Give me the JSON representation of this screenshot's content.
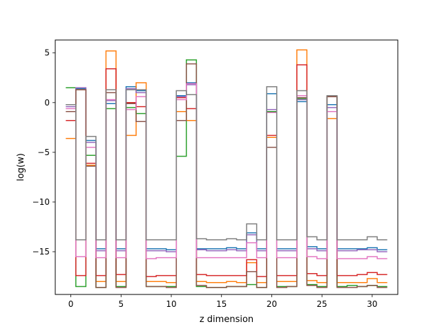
{
  "chart_data": {
    "type": "line",
    "style": "step",
    "title": "",
    "xlabel": "z dimension",
    "ylabel": "log(w)",
    "xlim": [
      -1.55,
      32.55
    ],
    "ylim": [
      -19.3,
      6.3
    ],
    "xticks": [
      0,
      5,
      10,
      15,
      20,
      25,
      30
    ],
    "yticks": [
      5,
      0,
      -5,
      -10,
      -15
    ],
    "ytick_labels": [
      "5",
      "0",
      "−5",
      "−10",
      "−15"
    ],
    "grid": false,
    "legend": "none",
    "x": [
      0,
      1,
      2,
      3,
      4,
      5,
      6,
      7,
      8,
      9,
      10,
      11,
      12,
      13,
      14,
      15,
      16,
      17,
      18,
      19,
      20,
      21,
      22,
      23,
      24,
      25,
      26,
      27,
      28,
      29,
      30,
      31
    ],
    "series": [
      {
        "color": "#1f77b4",
        "values": [
          -0.2,
          1.4,
          -3.8,
          -14.7,
          -0.1,
          -14.7,
          1.6,
          1.2,
          -14.7,
          -14.7,
          -14.8,
          0.7,
          2.0,
          -14.7,
          -14.7,
          -14.7,
          -14.6,
          -14.7,
          -13.1,
          -14.7,
          0.9,
          -14.7,
          -14.7,
          0.1,
          -14.5,
          -14.7,
          -0.2,
          -14.7,
          -14.7,
          -14.7,
          -14.6,
          -14.8
        ]
      },
      {
        "color": "#ff7f0e",
        "values": [
          -3.6,
          1.3,
          -6.3,
          -18.0,
          5.2,
          -18.0,
          -3.3,
          2.0,
          -18.0,
          -18.0,
          -18.1,
          -0.9,
          -1.8,
          -18.0,
          -18.1,
          -18.1,
          -18.0,
          -18.1,
          -16.1,
          -18.1,
          -3.5,
          -18.0,
          -18.0,
          5.3,
          -17.9,
          -18.1,
          -1.6,
          -18.1,
          -18.1,
          -18.1,
          -17.7,
          -18.1
        ]
      },
      {
        "color": "#2ca02c",
        "values": [
          1.5,
          -18.5,
          -5.3,
          -18.6,
          -0.6,
          -18.5,
          -0.5,
          -1.1,
          -18.5,
          -18.5,
          -18.5,
          -5.4,
          4.3,
          -18.5,
          -18.6,
          -18.6,
          -18.5,
          -18.5,
          -18.3,
          -18.6,
          -0.9,
          -18.5,
          -18.5,
          0.4,
          -18.3,
          -18.5,
          0.6,
          -18.5,
          -18.4,
          -18.5,
          -18.4,
          -18.5
        ]
      },
      {
        "color": "#d62728",
        "values": [
          -1.8,
          -17.4,
          -6.1,
          -17.4,
          3.4,
          -17.3,
          0.0,
          -0.4,
          -17.5,
          -17.4,
          -17.4,
          0.5,
          -0.6,
          -17.3,
          -17.4,
          -17.4,
          -17.4,
          -17.4,
          -15.8,
          -17.5,
          -3.3,
          -17.4,
          -17.4,
          3.8,
          -17.2,
          -17.4,
          0.6,
          -17.4,
          -17.4,
          -17.3,
          -17.1,
          -17.3
        ]
      },
      {
        "color": "#9467bd",
        "values": [
          -0.4,
          1.5,
          -4.0,
          -14.9,
          0.2,
          -14.9,
          1.4,
          1.0,
          -14.9,
          -14.9,
          -15.0,
          0.6,
          1.8,
          -14.8,
          -14.9,
          -14.9,
          -14.8,
          -14.9,
          -13.3,
          -14.9,
          -0.7,
          -14.9,
          -14.9,
          0.3,
          -14.7,
          -14.9,
          -0.5,
          -14.9,
          -14.9,
          -14.8,
          -14.8,
          -15.0
        ]
      },
      {
        "color": "#8c564b",
        "values": [
          -0.9,
          1.3,
          -6.4,
          -18.6,
          1.0,
          -18.6,
          -0.1,
          -1.9,
          -18.5,
          -18.5,
          -18.6,
          -1.8,
          3.9,
          -18.4,
          -18.6,
          -18.6,
          -18.5,
          -18.5,
          -17.0,
          -18.6,
          -4.5,
          -18.6,
          -18.5,
          0.5,
          -18.4,
          -18.6,
          0.6,
          -18.6,
          -18.6,
          -18.5,
          -18.4,
          -18.6
        ]
      },
      {
        "color": "#e377c2",
        "values": [
          -0.6,
          -15.5,
          -4.5,
          -15.6,
          0.3,
          -15.6,
          -0.7,
          0.6,
          -15.7,
          -15.6,
          -15.6,
          0.3,
          1.9,
          -15.6,
          -15.6,
          -15.6,
          -15.6,
          -15.6,
          -14.1,
          -15.6,
          -1.0,
          -15.6,
          -15.6,
          0.7,
          -15.5,
          -15.7,
          -0.9,
          -15.7,
          -15.7,
          -15.7,
          -15.5,
          -15.7
        ]
      },
      {
        "color": "#7f7f7f",
        "values": [
          -0.2,
          -13.8,
          -3.4,
          -13.8,
          1.3,
          -13.8,
          1.3,
          1.3,
          -13.8,
          -13.8,
          -13.8,
          1.2,
          0.8,
          -13.7,
          -13.8,
          -13.8,
          -13.7,
          -13.8,
          -12.2,
          -13.8,
          1.6,
          -13.8,
          -13.8,
          1.2,
          -13.5,
          -13.8,
          0.7,
          -13.8,
          -13.8,
          -13.8,
          -13.5,
          -13.8
        ]
      }
    ]
  }
}
